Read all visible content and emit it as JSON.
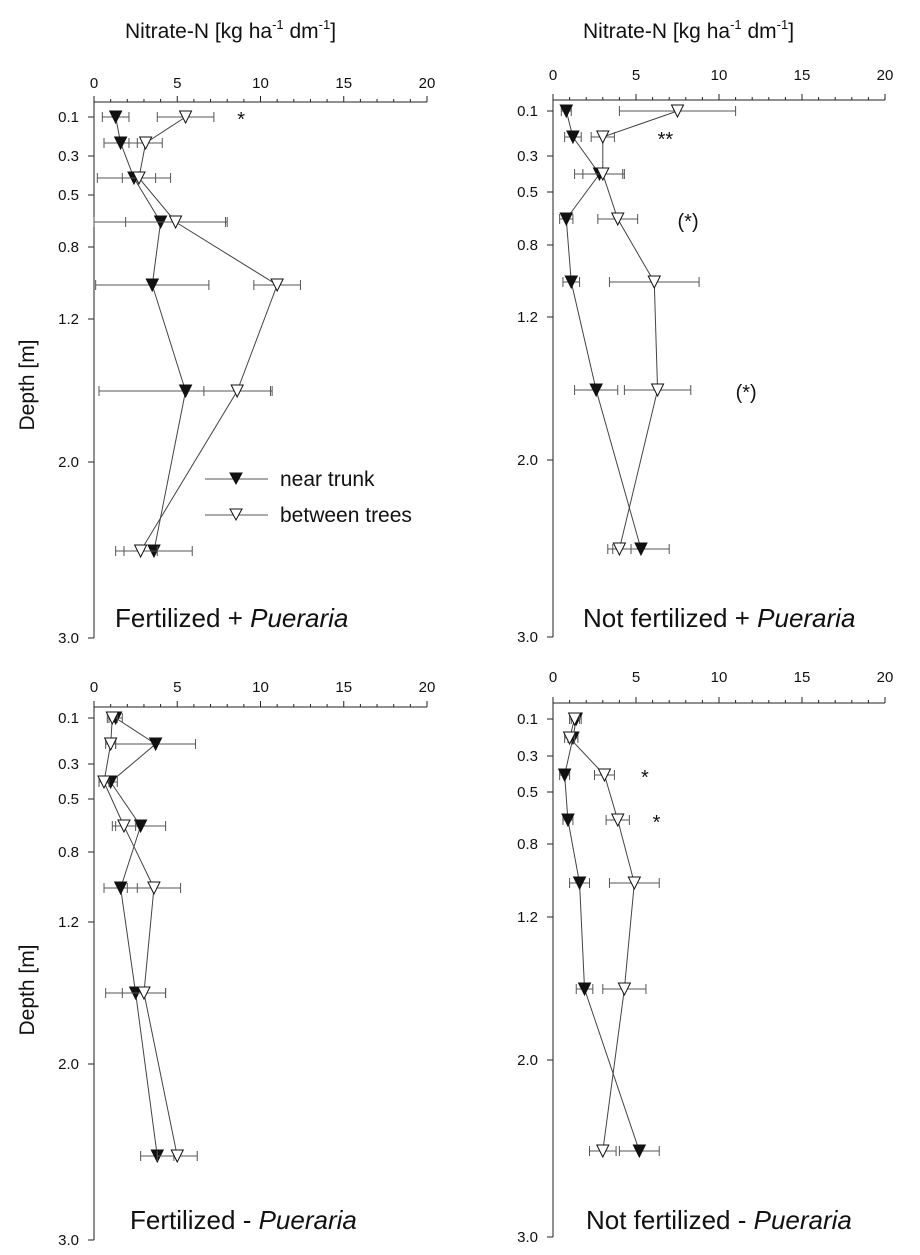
{
  "page": {
    "top_axis_title_base": "Nitrate-N [kg ha",
    "top_axis_title_mid": " dm",
    "top_axis_title_end": "]",
    "top_axis_title_sup": "-1",
    "y_axis_title": "Depth [m]"
  },
  "legend": {
    "near_trunk": "near trunk",
    "between_trees": "between trees"
  },
  "chart_data": [
    {
      "type": "scatter",
      "title": "Fertilized + ",
      "title_italic": "Pueraria",
      "xlabel": "Nitrate-N [kg ha-1 dm-1]",
      "ylabel": "Depth [m]",
      "xlim": [
        0,
        20
      ],
      "x_ticks": [
        "0",
        "5",
        "10",
        "15",
        "20"
      ],
      "y_ticks": [
        "0.1",
        "0.3",
        "0.5",
        "0.8",
        "1.2",
        "2.0",
        "3.0"
      ],
      "series": [
        {
          "name": "near trunk",
          "marker": "filled-down-triangle",
          "points": [
            {
              "depth": "0.1",
              "x": 1.3,
              "err": 0.8
            },
            {
              "depth": "0.2",
              "x": 1.6,
              "err": 1.0
            },
            {
              "depth": "0.4",
              "x": 2.4,
              "err": 2.2
            },
            {
              "depth": "0.65",
              "x": 4.0,
              "err": 4.0
            },
            {
              "depth": "1.0",
              "x": 3.5,
              "err": 3.4
            },
            {
              "depth": "1.6",
              "x": 5.5,
              "err": 5.2
            },
            {
              "depth": "2.5",
              "x": 3.6,
              "err": 2.3
            }
          ]
        },
        {
          "name": "between trees",
          "marker": "open-down-triangle",
          "points": [
            {
              "depth": "0.1",
              "x": 5.5,
              "err": 1.7
            },
            {
              "depth": "0.2",
              "x": 3.1,
              "err": 1.0
            },
            {
              "depth": "0.4",
              "x": 2.7,
              "err": 1.0
            },
            {
              "depth": "0.65",
              "x": 4.9,
              "err": 3.0
            },
            {
              "depth": "1.0",
              "x": 11.0,
              "err": 1.4
            },
            {
              "depth": "1.6",
              "x": 8.6,
              "err": 2.0
            },
            {
              "depth": "2.5",
              "x": 2.8,
              "err": 1.0
            }
          ]
        }
      ],
      "annotations": [
        {
          "depth": "0.1",
          "x": 8.6,
          "text": "*"
        }
      ],
      "show_legend": true
    },
    {
      "type": "scatter",
      "title": "Not fertilized + ",
      "title_italic": "Pueraria",
      "xlabel": "Nitrate-N [kg ha-1 dm-1]",
      "ylabel": "Depth [m]",
      "xlim": [
        0,
        20
      ],
      "x_ticks": [
        "0",
        "5",
        "10",
        "15",
        "20"
      ],
      "y_ticks": [
        "0.1",
        "0.3",
        "0.5",
        "0.8",
        "1.2",
        "2.0",
        "3.0"
      ],
      "series": [
        {
          "name": "near trunk",
          "marker": "filled-down-triangle",
          "points": [
            {
              "depth": "0.1",
              "x": 0.8,
              "err": 0.3
            },
            {
              "depth": "0.2",
              "x": 1.2,
              "err": 0.5
            },
            {
              "depth": "0.4",
              "x": 2.8,
              "err": 1.5
            },
            {
              "depth": "0.65",
              "x": 0.8,
              "err": 0.4
            },
            {
              "depth": "1.0",
              "x": 1.1,
              "err": 0.5
            },
            {
              "depth": "1.6",
              "x": 2.6,
              "err": 1.3
            },
            {
              "depth": "2.5",
              "x": 5.3,
              "err": 1.7
            }
          ]
        },
        {
          "name": "between trees",
          "marker": "open-down-triangle",
          "points": [
            {
              "depth": "0.1",
              "x": 7.5,
              "err": 3.5
            },
            {
              "depth": "0.2",
              "x": 3.0,
              "err": 0.7
            },
            {
              "depth": "0.4",
              "x": 3.0,
              "err": 1.2
            },
            {
              "depth": "0.65",
              "x": 3.9,
              "err": 1.2
            },
            {
              "depth": "1.0",
              "x": 6.1,
              "err": 2.7
            },
            {
              "depth": "1.6",
              "x": 6.3,
              "err": 2.0
            },
            {
              "depth": "2.5",
              "x": 4.0,
              "err": 0.7
            }
          ]
        }
      ],
      "annotations": [
        {
          "depth": "0.2",
          "x": 6.3,
          "text": "**"
        },
        {
          "depth": "0.65",
          "x": 7.5,
          "text": "(*)"
        },
        {
          "depth": "1.6",
          "x": 11.0,
          "text": "(*)"
        }
      ],
      "show_legend": false
    },
    {
      "type": "scatter",
      "title": "Fertilized - ",
      "title_italic": "Pueraria",
      "xlabel": "Nitrate-N [kg ha-1 dm-1]",
      "ylabel": "Depth [m]",
      "xlim": [
        0,
        20
      ],
      "x_ticks": [
        "0",
        "5",
        "10",
        "15",
        "20"
      ],
      "y_ticks": [
        "0.1",
        "0.3",
        "0.5",
        "0.8",
        "1.2",
        "2.0",
        "3.0"
      ],
      "series": [
        {
          "name": "near trunk",
          "marker": "filled-down-triangle",
          "points": [
            {
              "depth": "0.1",
              "x": 1.3,
              "err": 0.4
            },
            {
              "depth": "0.2",
              "x": 3.7,
              "err": 2.4
            },
            {
              "depth": "0.4",
              "x": 1.0,
              "err": 0.4
            },
            {
              "depth": "0.65",
              "x": 2.8,
              "err": 1.5
            },
            {
              "depth": "1.0",
              "x": 1.6,
              "err": 1.0
            },
            {
              "depth": "1.6",
              "x": 2.5,
              "err": 1.8
            },
            {
              "depth": "2.5",
              "x": 3.8,
              "err": 1.0
            }
          ]
        },
        {
          "name": "between trees",
          "marker": "open-down-triangle",
          "points": [
            {
              "depth": "0.1",
              "x": 1.1,
              "err": 0.3
            },
            {
              "depth": "0.2",
              "x": 1.0,
              "err": 0.3
            },
            {
              "depth": "0.4",
              "x": 0.6,
              "err": 0.3
            },
            {
              "depth": "0.65",
              "x": 1.8,
              "err": 0.7
            },
            {
              "depth": "1.0",
              "x": 3.6,
              "err": 1.6
            },
            {
              "depth": "1.6",
              "x": 3.0,
              "err": 1.3
            },
            {
              "depth": "2.5",
              "x": 5.0,
              "err": 1.2
            }
          ]
        }
      ],
      "annotations": [],
      "show_legend": false
    },
    {
      "type": "scatter",
      "title": "Not fertilized - ",
      "title_italic": "Pueraria",
      "xlabel": "Nitrate-N [kg ha-1 dm-1]",
      "ylabel": "Depth [m]",
      "xlim": [
        0,
        20
      ],
      "x_ticks": [
        "0",
        "5",
        "10",
        "15",
        "20"
      ],
      "y_ticks": [
        "0.1",
        "0.3",
        "0.5",
        "0.8",
        "1.2",
        "2.0",
        "3.0"
      ],
      "series": [
        {
          "name": "near trunk",
          "marker": "filled-down-triangle",
          "points": [
            {
              "depth": "0.1",
              "x": 1.4,
              "err": 0.3
            },
            {
              "depth": "0.2",
              "x": 1.2,
              "err": 0.3
            },
            {
              "depth": "0.4",
              "x": 0.7,
              "err": 0.3
            },
            {
              "depth": "0.65",
              "x": 0.9,
              "err": 0.3
            },
            {
              "depth": "1.0",
              "x": 1.6,
              "err": 0.6
            },
            {
              "depth": "1.6",
              "x": 1.9,
              "err": 0.5
            },
            {
              "depth": "2.5",
              "x": 5.2,
              "err": 1.2
            }
          ]
        },
        {
          "name": "between trees",
          "marker": "open-down-triangle",
          "points": [
            {
              "depth": "0.1",
              "x": 1.3,
              "err": 0.3
            },
            {
              "depth": "0.2",
              "x": 1.0,
              "err": 0.3
            },
            {
              "depth": "0.4",
              "x": 3.1,
              "err": 0.6
            },
            {
              "depth": "0.65",
              "x": 3.9,
              "err": 0.7
            },
            {
              "depth": "1.0",
              "x": 4.9,
              "err": 1.5
            },
            {
              "depth": "1.6",
              "x": 4.3,
              "err": 1.3
            },
            {
              "depth": "2.5",
              "x": 3.0,
              "err": 0.8
            }
          ]
        }
      ],
      "annotations": [
        {
          "depth": "0.4",
          "x": 5.3,
          "text": "*"
        },
        {
          "depth": "0.65",
          "x": 6.0,
          "text": "*"
        }
      ],
      "show_legend": false
    }
  ]
}
